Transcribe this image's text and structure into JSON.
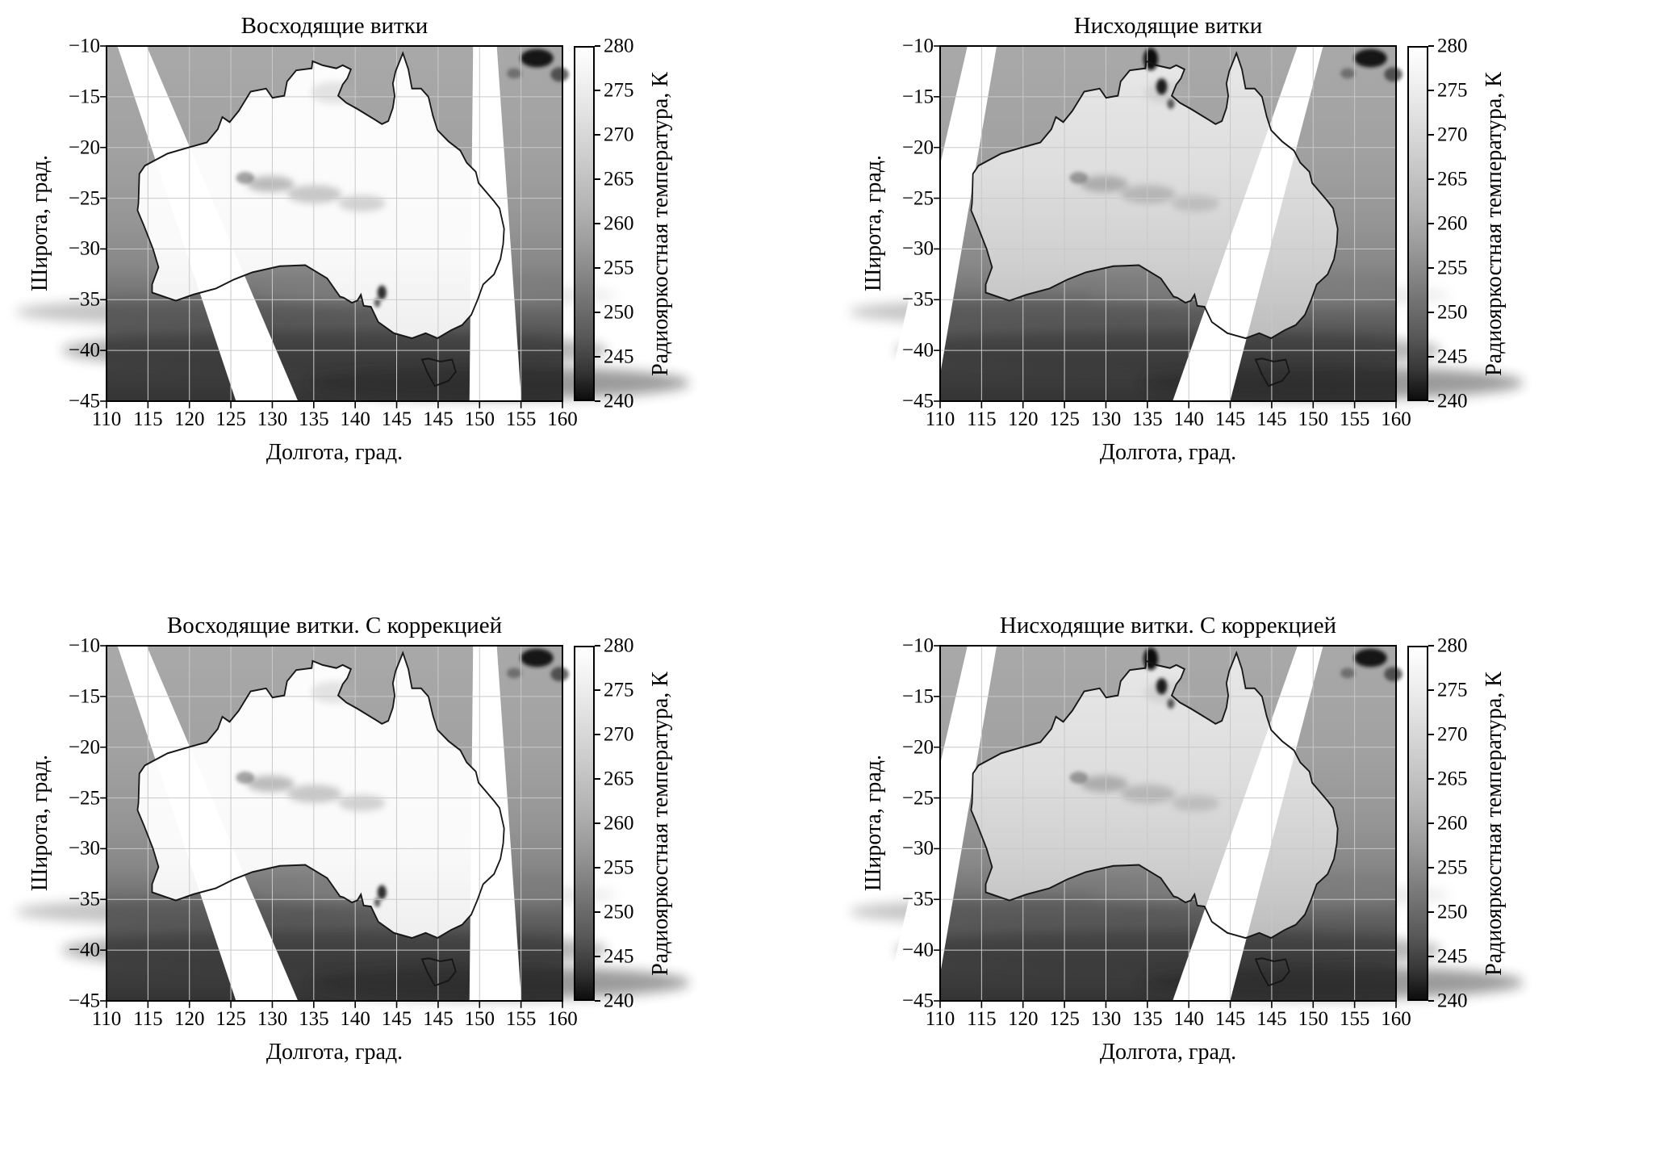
{
  "figure": {
    "background": "#ffffff",
    "rows": 2,
    "columns": 2
  },
  "panels": [
    {
      "key": "ascending",
      "variant": "asc",
      "title": "Восходящие витки"
    },
    {
      "key": "descending",
      "variant": "desc",
      "title": "Нисходящие витки"
    },
    {
      "key": "ascending-corrected",
      "variant": "asc",
      "title": "Восходящие витки. С коррекцией"
    },
    {
      "key": "descending-corrected",
      "variant": "desc",
      "title": "Нисходящие витки. С коррекцией"
    }
  ],
  "axes": {
    "xlabel": "Долгота, град.",
    "ylabel": "Широта, град.",
    "x_ticks": [
      "110",
      "115",
      "120",
      "125",
      "130",
      "135",
      "140",
      "145",
      "145",
      "150",
      "155",
      "160"
    ],
    "y_ticks": [
      "−10",
      "−15",
      "−20",
      "−25",
      "−30",
      "−35",
      "−40",
      "−45"
    ]
  },
  "colorbar": {
    "label": "Радиояркостная температура, К",
    "ticks": [
      "280",
      "275",
      "270",
      "265",
      "260",
      "255",
      "250",
      "245",
      "240"
    ],
    "min": 240,
    "max": 280,
    "top_color": "#ffffff",
    "bottom_color": "#0d0d0d"
  },
  "chart_data": {
    "type": "heatmap",
    "layout": "2x2 grid of grayscale geographic maps (microwave brightness temperature over Australia), each with its own colorbar",
    "panels": [
      {
        "title": "Восходящие витки",
        "orbit": "ascending",
        "corrected": false
      },
      {
        "title": "Нисходящие витки",
        "orbit": "descending",
        "corrected": false
      },
      {
        "title": "Восходящие витки. С коррекцией",
        "orbit": "ascending",
        "corrected": true
      },
      {
        "title": "Нисходящие витки. С коррекцией",
        "orbit": "descending",
        "corrected": true
      }
    ],
    "x": {
      "label": "Долгота, град.",
      "range": [
        110,
        160
      ],
      "tick_labels": [
        "110",
        "115",
        "120",
        "125",
        "130",
        "135",
        "140",
        "145",
        "145",
        "150",
        "155",
        "160"
      ]
    },
    "y": {
      "label": "Широта, град.",
      "range": [
        -45,
        -10
      ],
      "tick_labels": [
        -10,
        -15,
        -20,
        -25,
        -30,
        -35,
        -40,
        -45
      ]
    },
    "value": {
      "label": "Радиояркостная температура, К",
      "range": [
        240,
        280
      ],
      "tick_step": 5,
      "colormap": "grayscale: 240 K = black, 280 K = white"
    },
    "estimated_values_K": {
      "australian_land_interior_ascending": [
        275,
        280
      ],
      "australian_land_interior_descending": [
        260,
        270
      ],
      "central_cloud_band_over_land": [
        258,
        266
      ],
      "tropical_ocean_north_of_australia": [
        255,
        263
      ],
      "mid_latitude_ocean": [
        250,
        258
      ],
      "southern_ocean_below_38S": [
        241,
        250
      ],
      "dark_storm_spots_north_descending": [
        240,
        246
      ],
      "dark_patch_northeast_corner": [
        240,
        244
      ]
    },
    "no_data_regions": "white diagonal wedges = gaps between satellite swaths (ascending panels lean one way, descending the other)",
    "overlays": [
      "coastline of mainland Australia",
      "coastline of Tasmania",
      "5-degree graticule gridlines"
    ],
    "grid": true,
    "colorbar_position": "right of each panel"
  }
}
